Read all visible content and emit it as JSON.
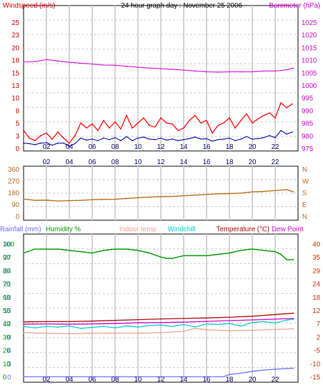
{
  "chart_data": [
    {
      "type": "line",
      "title": "24 hour graph day : November 25 2006",
      "left_label": "Windspeed (m/s)",
      "right_label": "Barometer (hPa)",
      "x_ticks": [
        "02",
        "04",
        "06",
        "08",
        "10",
        "12",
        "14",
        "16",
        "18",
        "20",
        "22"
      ],
      "x_range": [
        0,
        24
      ],
      "y_left_ticks": [
        "0",
        "3",
        "5",
        "8",
        "10",
        "13",
        "15",
        "18",
        "20",
        "23",
        "25"
      ],
      "y_left_range": [
        0,
        25
      ],
      "y_right_ticks": [
        "975",
        "980",
        "985",
        "990",
        "995",
        "1000",
        "1005",
        "1010",
        "1015",
        "1020",
        "1025"
      ],
      "y_right_range": [
        975,
        1025
      ],
      "grid": true,
      "series": [
        {
          "name": "Barometer",
          "axis": "right",
          "color": "#dd00dd",
          "x": [
            0,
            1,
            2,
            3,
            4,
            5,
            6,
            7,
            8,
            9,
            10,
            11,
            12,
            13,
            14,
            15,
            16,
            17,
            18,
            19,
            20,
            21,
            22,
            23,
            23.6
          ],
          "values": [
            1009.2,
            1009.4,
            1010.1,
            1009.6,
            1009.1,
            1008.7,
            1008.4,
            1008.0,
            1007.9,
            1007.5,
            1007.1,
            1006.8,
            1006.5,
            1006.3,
            1006.0,
            1005.6,
            1005.3,
            1005.2,
            1005.3,
            1005.3,
            1005.3,
            1005.6,
            1005.6,
            1006.1,
            1006.8
          ]
        },
        {
          "name": "Wind gust",
          "axis": "left",
          "color": "#ff0000",
          "x": [
            0,
            0.5,
            1,
            1.5,
            2,
            2.5,
            3,
            3.5,
            4,
            4.5,
            5,
            5.5,
            6,
            6.5,
            7,
            7.5,
            8,
            8.5,
            9,
            9.5,
            10,
            10.5,
            11,
            11.5,
            12,
            12.5,
            13,
            13.5,
            14,
            14.5,
            15,
            15.5,
            16,
            16.5,
            17,
            17.5,
            18,
            18.5,
            19,
            19.5,
            20,
            20.5,
            21,
            21.5,
            22,
            22.5,
            23,
            23.5
          ],
          "values": [
            3.5,
            2.0,
            1.5,
            2.5,
            3.0,
            1.8,
            3.2,
            2.0,
            1.0,
            2.5,
            5.0,
            4.0,
            4.8,
            3.5,
            5.5,
            4.0,
            5.2,
            3.8,
            6.5,
            4.0,
            5.0,
            6.0,
            4.5,
            4.2,
            6.0,
            5.0,
            4.8,
            3.5,
            4.0,
            5.5,
            6.5,
            5.0,
            5.5,
            3.0,
            4.5,
            5.0,
            6.0,
            4.0,
            5.5,
            6.8,
            5.0,
            5.8,
            6.5,
            7.0,
            6.0,
            9.0,
            8.0,
            8.8
          ]
        },
        {
          "name": "Wind speed",
          "axis": "left",
          "color": "#0000aa",
          "x": [
            0,
            0.5,
            1,
            1.5,
            2,
            2.5,
            3,
            3.5,
            4,
            4.5,
            5,
            5.5,
            6,
            6.5,
            7,
            7.5,
            8,
            8.5,
            9,
            9.5,
            10,
            10.5,
            11,
            11.5,
            12,
            12.5,
            13,
            13.5,
            14,
            14.5,
            15,
            15.5,
            16,
            16.5,
            17,
            17.5,
            18,
            18.5,
            19,
            19.5,
            20,
            20.5,
            21,
            21.5,
            22,
            22.5,
            23,
            23.5
          ],
          "values": [
            1.0,
            0.9,
            0.7,
            1.0,
            1.1,
            0.6,
            1.0,
            1.0,
            0.4,
            0.9,
            2.0,
            1.6,
            1.8,
            1.5,
            2.0,
            1.7,
            2.1,
            1.5,
            2.3,
            1.5,
            2.0,
            2.2,
            1.8,
            1.7,
            2.0,
            1.6,
            1.8,
            1.5,
            1.7,
            1.9,
            2.2,
            1.8,
            1.9,
            1.4,
            1.7,
            1.8,
            2.0,
            1.5,
            1.8,
            2.3,
            1.8,
            1.9,
            2.1,
            2.5,
            2.1,
            3.5,
            2.8,
            3.2
          ]
        }
      ]
    },
    {
      "type": "line",
      "x_ticks": [
        "02",
        "04",
        "06",
        "08",
        "10",
        "12",
        "14",
        "16",
        "18",
        "20",
        "22"
      ],
      "x_range": [
        0,
        24
      ],
      "y_left_ticks": [
        "0",
        "90",
        "180",
        "270",
        "360"
      ],
      "y_left_range": [
        0,
        360
      ],
      "y_right_ticks": [
        "N",
        "E",
        "S",
        "W",
        "N"
      ],
      "grid": true,
      "series": [
        {
          "name": "Wind direction",
          "color": "#b86a1a",
          "x": [
            0,
            1,
            2,
            3,
            4,
            5,
            6,
            7,
            8,
            9,
            10,
            11,
            12,
            13,
            14,
            15,
            16,
            17,
            18,
            19,
            20,
            21,
            22,
            23,
            23.6
          ],
          "values": [
            130,
            120,
            122,
            115,
            118,
            120,
            125,
            127,
            128,
            135,
            140,
            145,
            148,
            150,
            155,
            160,
            165,
            170,
            172,
            175,
            185,
            188,
            195,
            202,
            185
          ]
        }
      ]
    },
    {
      "type": "line",
      "x_ticks": [
        "02",
        "04",
        "06",
        "08",
        "10",
        "12",
        "14",
        "16",
        "18",
        "20",
        "22"
      ],
      "x_range": [
        0,
        24
      ],
      "legend": [
        {
          "label": "Rainfall (mm)",
          "color": "#6a6aff"
        },
        {
          "label": "Humidity %",
          "color": "#009900"
        },
        {
          "label": "Indoor temp",
          "color": "#f0a090"
        },
        {
          "label": "Windchill",
          "color": "#00cccc"
        },
        {
          "label": "Temperature (°C)",
          "color": "#aa0000"
        },
        {
          "label": "Dew Point",
          "color": "#cc00cc"
        }
      ],
      "y_rain_ticks": [
        "0",
        "3",
        "6",
        "9",
        "12",
        "15",
        "18",
        "21",
        "24",
        "27",
        "30"
      ],
      "y_rain_range": [
        0,
        30
      ],
      "y_humidity_ticks": [
        "0",
        "10",
        "20",
        "30",
        "40",
        "50",
        "60",
        "70",
        "80",
        "90",
        "100"
      ],
      "y_humidity_range": [
        0,
        100
      ],
      "y_right_ticks": [
        "-15",
        "-10",
        "-5",
        "2",
        "7",
        "12",
        "18",
        "24",
        "29",
        "35",
        "40"
      ],
      "y_right_range": [
        -15,
        40
      ],
      "grid": true,
      "series": [
        {
          "name": "Humidity",
          "axis": "humidity",
          "color": "#009900",
          "x": [
            0,
            1,
            2,
            3,
            4,
            5,
            6,
            7,
            8,
            9,
            10,
            11,
            12,
            12.5,
            13,
            14,
            15,
            16,
            17,
            18,
            19,
            20,
            21,
            22,
            22.5,
            23,
            23.6
          ],
          "values": [
            93,
            96,
            96,
            96,
            95,
            94,
            93,
            95,
            96,
            96,
            95,
            93,
            90,
            89,
            89,
            91,
            91,
            91,
            92,
            93,
            95,
            96,
            95,
            94,
            92,
            88,
            88
          ]
        },
        {
          "name": "Temperature",
          "axis": "right",
          "color": "#aa0000",
          "x": [
            0,
            2,
            4,
            6,
            8,
            10,
            12,
            14,
            16,
            18,
            20,
            22,
            23.6
          ],
          "values": [
            7.7,
            7.8,
            7.8,
            8.0,
            8.3,
            8.6,
            8.9,
            9.1,
            9.3,
            9.6,
            10.0,
            10.7,
            11.3
          ]
        },
        {
          "name": "Windchill",
          "axis": "right",
          "color": "#00cccc",
          "x": [
            0,
            1,
            2,
            3,
            4,
            5,
            6,
            7,
            8,
            9,
            10,
            11,
            12,
            13,
            14,
            15,
            16,
            17,
            18,
            19,
            20,
            21,
            22,
            23,
            23.6
          ],
          "values": [
            5.8,
            5.2,
            5.8,
            5.5,
            6.0,
            5.0,
            5.4,
            5.8,
            5.2,
            6.0,
            5.5,
            6.2,
            6.4,
            5.8,
            6.6,
            5.6,
            6.8,
            6.6,
            7.0,
            5.9,
            7.4,
            7.8,
            7.2,
            8.4,
            8.8
          ]
        },
        {
          "name": "Dew Point",
          "axis": "right",
          "color": "#cc00cc",
          "x": [
            0,
            2,
            4,
            6,
            8,
            10,
            12,
            14,
            16,
            18,
            20,
            22,
            23.6
          ],
          "values": [
            6.7,
            6.8,
            6.7,
            6.8,
            7.0,
            7.3,
            7.4,
            7.6,
            7.9,
            8.2,
            8.5,
            8.8,
            9.1
          ]
        },
        {
          "name": "Indoor temp",
          "axis": "right",
          "color": "#f0a090",
          "x": [
            0,
            2,
            4,
            6,
            8,
            10,
            12,
            14,
            15,
            16,
            18,
            20,
            22,
            23.6
          ],
          "values": [
            3.2,
            3.0,
            2.8,
            3.0,
            3.0,
            3.0,
            3.2,
            3.8,
            5.0,
            4.4,
            4.0,
            4.2,
            4.6,
            4.8
          ]
        },
        {
          "name": "Rainfall",
          "axis": "rain",
          "color": "#6a6aff",
          "x": [
            0,
            17.5,
            18.0,
            19.0,
            20.0,
            21.0,
            22.0,
            23.6
          ],
          "values": [
            0,
            0,
            0.5,
            0.8,
            1.2,
            1.5,
            1.7,
            1.9
          ]
        }
      ]
    }
  ]
}
